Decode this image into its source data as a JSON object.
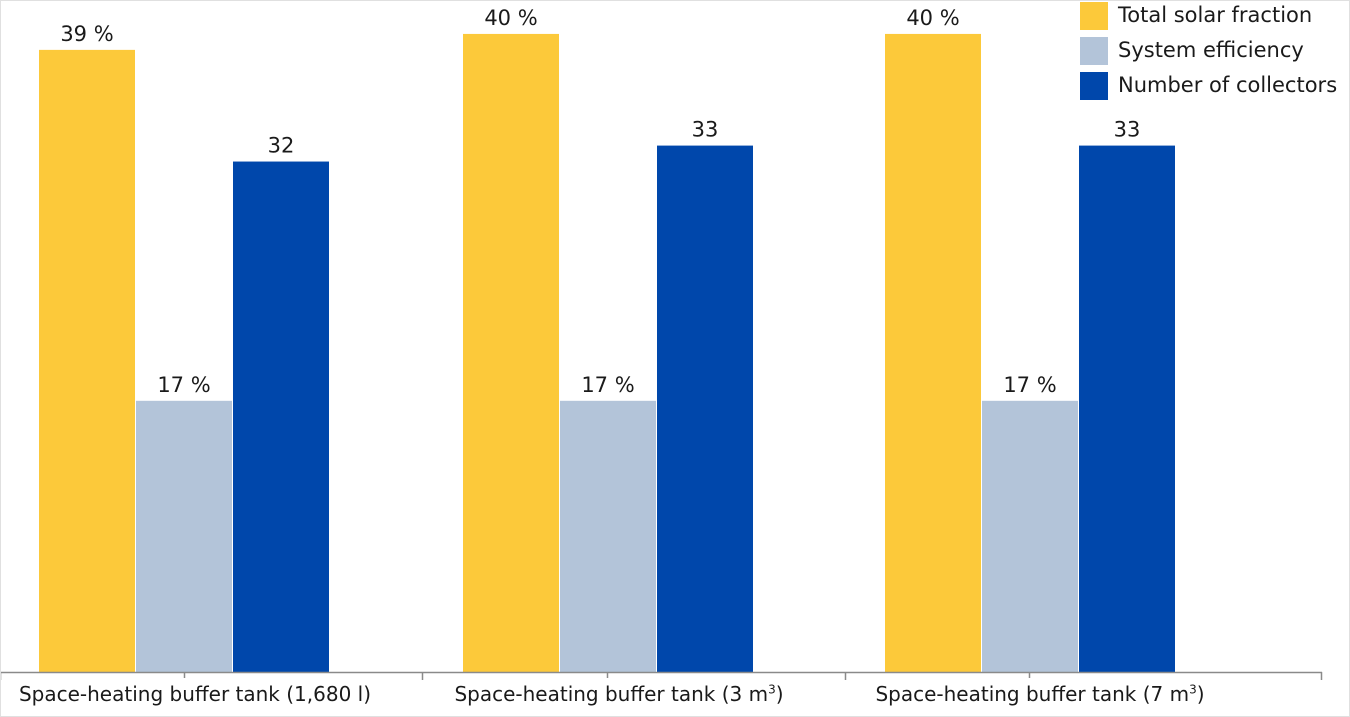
{
  "chart_data": {
    "type": "bar",
    "categories": [
      {
        "prefix": "Space-heating buffer tank (1,680 l)",
        "sup": "",
        "suffix": ""
      },
      {
        "prefix": "Space-heating buffer tank (3 m",
        "sup": "3",
        "suffix": ")"
      },
      {
        "prefix": "Space-heating buffer tank (7 m",
        "sup": "3",
        "suffix": ")"
      }
    ],
    "series": [
      {
        "name": "Total solar fraction",
        "color": "#FCC93A",
        "values": [
          39,
          40,
          40
        ],
        "labels": [
          "39 %",
          "40 %",
          "40 %"
        ]
      },
      {
        "name": "System efficiency",
        "color": "#B3C4D9",
        "values": [
          17,
          17,
          17
        ],
        "labels": [
          "17 %",
          "17 %",
          "17 %"
        ]
      },
      {
        "name": "Number of collectors",
        "color": "#0047AB",
        "values": [
          32,
          33,
          33
        ],
        "labels": [
          "32",
          "33",
          "33"
        ]
      }
    ],
    "title": "",
    "xlabel": "",
    "ylabel": "",
    "ylim": [
      0,
      41.5
    ],
    "grid": false,
    "legend": "top-right"
  }
}
